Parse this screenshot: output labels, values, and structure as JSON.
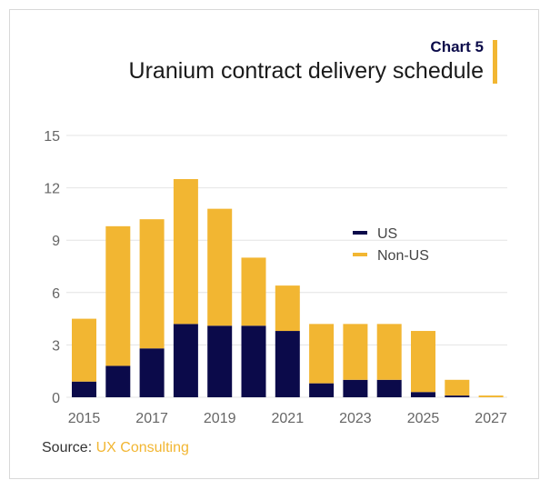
{
  "header": {
    "chart_label": "Chart 5",
    "title": "Uranium contract delivery schedule"
  },
  "source": {
    "prefix": "Source: ",
    "org": "UX Consulting"
  },
  "colors": {
    "us": "#0b0a4a",
    "non_us": "#f2b632",
    "grid": "#e4e4e4",
    "accent": "#f2b632"
  },
  "chart_data": {
    "type": "bar",
    "stacked": true,
    "title": "Uranium contract delivery schedule",
    "categories": [
      2015,
      2016,
      2017,
      2018,
      2019,
      2020,
      2021,
      2022,
      2023,
      2024,
      2025,
      2026,
      2027
    ],
    "x_tick_labels": [
      "2015",
      "2017",
      "2019",
      "2021",
      "2023",
      "2025",
      "2027"
    ],
    "series": [
      {
        "name": "US",
        "values": [
          0.9,
          1.8,
          2.8,
          4.2,
          4.1,
          4.1,
          3.8,
          0.8,
          1.0,
          1.0,
          0.3,
          0.1,
          0.0
        ]
      },
      {
        "name": "Non-US",
        "values": [
          3.6,
          8.0,
          7.4,
          8.3,
          6.7,
          3.9,
          2.6,
          3.4,
          3.2,
          3.2,
          3.5,
          0.9,
          0.1
        ]
      }
    ],
    "ylim": [
      0,
      15
    ],
    "y_ticks": [
      0,
      3,
      6,
      9,
      12,
      15
    ],
    "grid": true,
    "legend_position": "center-right"
  }
}
